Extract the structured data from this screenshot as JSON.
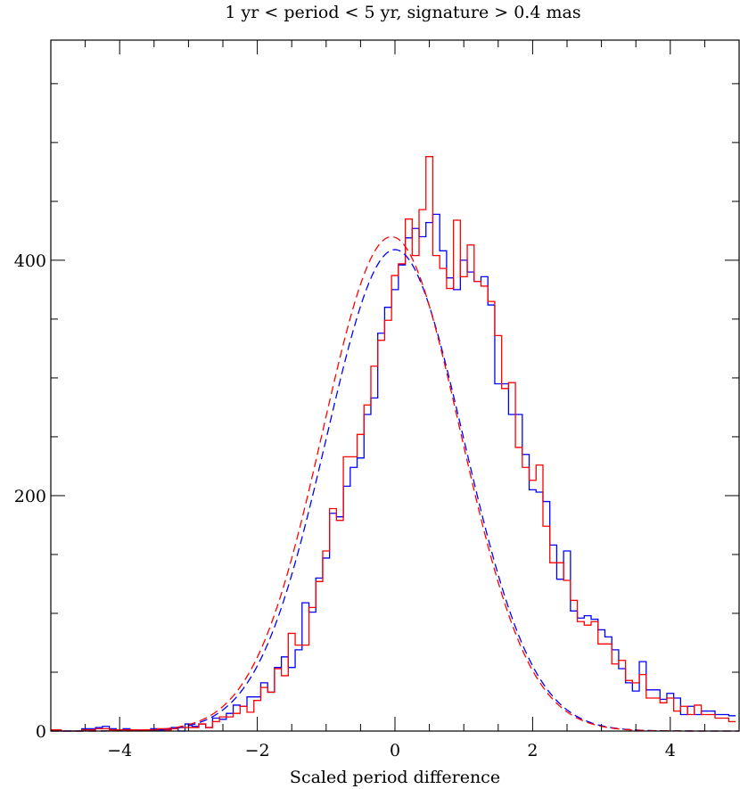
{
  "chart_data": {
    "type": "histogram",
    "title": "1 yr < period < 5 yr, signature > 0.4 mas",
    "xlabel": "Scaled period difference",
    "ylabel": "",
    "xlim": [
      -5,
      5
    ],
    "ylim": [
      0,
      587
    ],
    "xticks": [
      -4,
      -2,
      0,
      2,
      4
    ],
    "xtick_labels": [
      "−4",
      "−2",
      "0",
      "2",
      "4"
    ],
    "xminor_step": 0.5,
    "yticks": [
      0,
      200,
      400
    ],
    "ytick_labels": [
      "0",
      "200",
      "400"
    ],
    "yminor_step": 50,
    "grid": false,
    "bin_width": 0.1,
    "bin_centers_start": -5.0,
    "series": [
      {
        "style": "step",
        "color": "#0000ff",
        "values": [
          1,
          1,
          0,
          0,
          0,
          2,
          2,
          3,
          4,
          2,
          1,
          2,
          1,
          1,
          1,
          2,
          1,
          2,
          3,
          0,
          6,
          4,
          6,
          3,
          11,
          10,
          15,
          22,
          21,
          29,
          29,
          41,
          33,
          54,
          63,
          54,
          69,
          109,
          101,
          130,
          147,
          185,
          182,
          208,
          224,
          232,
          269,
          283,
          338,
          360,
          375,
          396,
          419,
          427,
          420,
          432,
          439,
          408,
          385,
          375,
          400,
          390,
          382,
          386,
          362,
          295,
          295,
          269,
          269,
          235,
          205,
          203,
          195,
          158,
          129,
          153,
          102,
          96,
          98,
          95,
          86,
          80,
          69,
          53,
          41,
          34,
          59,
          35,
          35,
          27,
          32,
          28,
          14,
          21,
          14,
          17,
          17,
          14,
          14,
          13
        ]
      },
      {
        "style": "step",
        "color": "#ff0000",
        "values": [
          1,
          1,
          0,
          0,
          0,
          1,
          1,
          2,
          2,
          1,
          1,
          1,
          1,
          1,
          1,
          1,
          2,
          1,
          2,
          3,
          3,
          3,
          6,
          3,
          8,
          12,
          12,
          15,
          21,
          16,
          26,
          37,
          33,
          53,
          47,
          83,
          73,
          73,
          105,
          127,
          153,
          189,
          179,
          233,
          233,
          252,
          277,
          310,
          332,
          349,
          387,
          397,
          435,
          404,
          443,
          488,
          404,
          393,
          376,
          434,
          386,
          413,
          382,
          378,
          365,
          336,
          291,
          296,
          241,
          224,
          213,
          226,
          174,
          143,
          143,
          128,
          111,
          93,
          90,
          93,
          74,
          74,
          57,
          60,
          43,
          41,
          48,
          28,
          28,
          24,
          28,
          17,
          21,
          14,
          22,
          14,
          14,
          11,
          11,
          8
        ]
      },
      {
        "style": "dashed-gaussian",
        "color": "#0000ff",
        "peak": 409,
        "mean": 0.0,
        "sigma": 1.0
      },
      {
        "style": "dashed-gaussian",
        "color": "#ff0000",
        "peak": 420,
        "mean": -0.05,
        "sigma": 1.0
      }
    ]
  }
}
